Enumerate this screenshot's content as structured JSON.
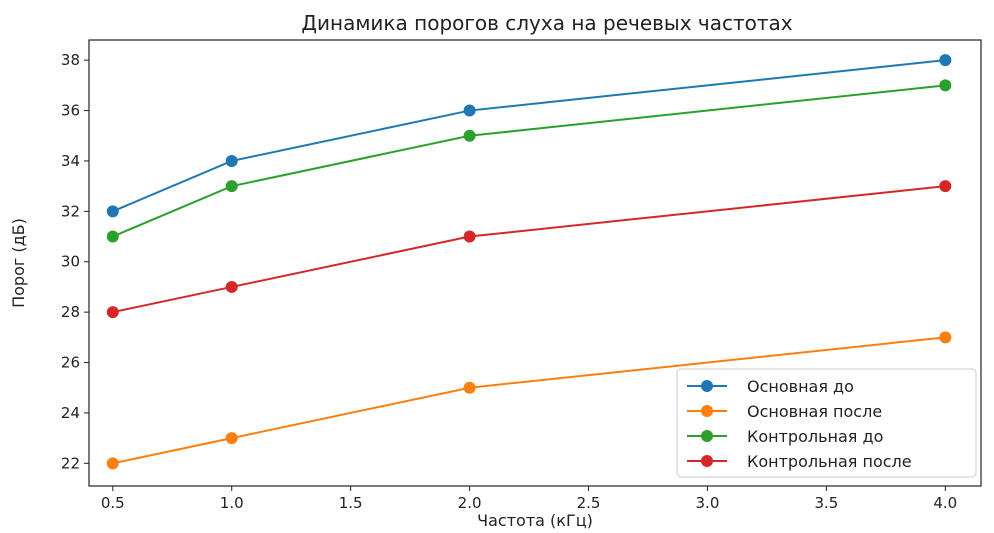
{
  "chart_data": {
    "type": "line",
    "title": "Динамика порогов слуха на речевых частотах",
    "xlabel": "Частота (кГц)",
    "ylabel": "Порог (дБ)",
    "x": [
      0.5,
      1.0,
      2.0,
      4.0
    ],
    "xlim": [
      0.4,
      4.15
    ],
    "ylim": [
      21.1,
      38.8
    ],
    "xticks": [
      "0.5",
      "1.0",
      "1.5",
      "2.0",
      "2.5",
      "3.0",
      "3.5",
      "4.0"
    ],
    "xtick_values": [
      0.5,
      1.0,
      1.5,
      2.0,
      2.5,
      3.0,
      3.5,
      4.0
    ],
    "yticks": [
      "22",
      "24",
      "26",
      "28",
      "30",
      "32",
      "34",
      "36",
      "38"
    ],
    "ytick_values": [
      22,
      24,
      26,
      28,
      30,
      32,
      34,
      36,
      38
    ],
    "grid": false,
    "legend_position": "lower-right",
    "series": [
      {
        "name": "Основная до",
        "color": "#1f77b4",
        "values": [
          32,
          34,
          36,
          38
        ]
      },
      {
        "name": "Основная после",
        "color": "#ff7f0e",
        "values": [
          22,
          23,
          25,
          27
        ]
      },
      {
        "name": "Контрольная до",
        "color": "#2ca02c",
        "values": [
          31,
          33,
          35,
          37
        ]
      },
      {
        "name": "Контрольная после",
        "color": "#d62728",
        "values": [
          28,
          29,
          31,
          33
        ]
      }
    ]
  }
}
